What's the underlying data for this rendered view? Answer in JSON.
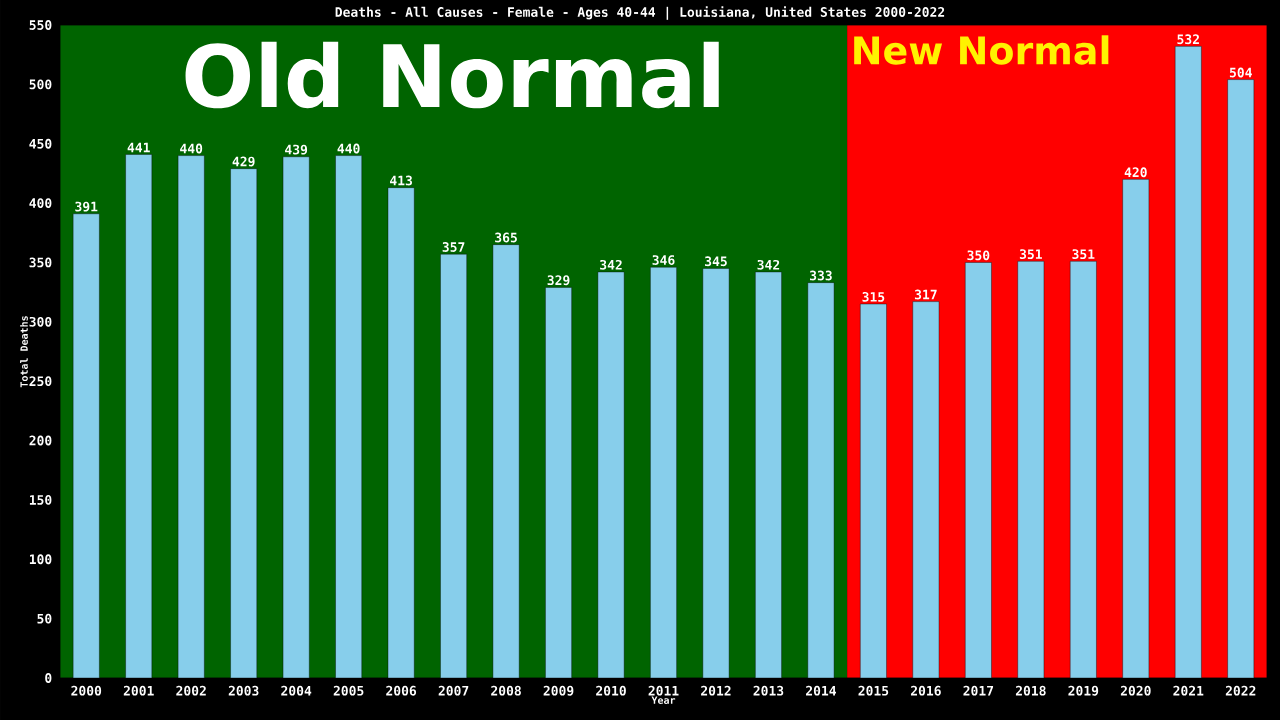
{
  "chart_data": {
    "type": "bar",
    "title": "Deaths - All Causes - Female - Ages 40-44 | Louisiana, United States 2000-2022",
    "xlabel": "Year",
    "ylabel": "Total Deaths",
    "categories": [
      "2000",
      "2001",
      "2002",
      "2003",
      "2004",
      "2005",
      "2006",
      "2007",
      "2008",
      "2009",
      "2010",
      "2011",
      "2012",
      "2013",
      "2014",
      "2015",
      "2016",
      "2017",
      "2018",
      "2019",
      "2020",
      "2021",
      "2022"
    ],
    "values": [
      391,
      441,
      440,
      429,
      439,
      440,
      413,
      357,
      365,
      329,
      342,
      346,
      345,
      342,
      333,
      315,
      317,
      350,
      351,
      351,
      420,
      532,
      504
    ],
    "color": "#87ceeb",
    "ylim": [
      0,
      550
    ],
    "yticks": [
      0,
      50,
      100,
      150,
      200,
      250,
      300,
      350,
      400,
      450,
      500,
      550
    ],
    "data_labels": true,
    "bands": [
      {
        "axis": "x",
        "from": "2000",
        "to": "2014",
        "label": "Old Normal",
        "color": "#006400"
      },
      {
        "axis": "x",
        "from": "2015",
        "to": "2022",
        "label": "New Normal",
        "color": "#ff0000"
      }
    ]
  }
}
